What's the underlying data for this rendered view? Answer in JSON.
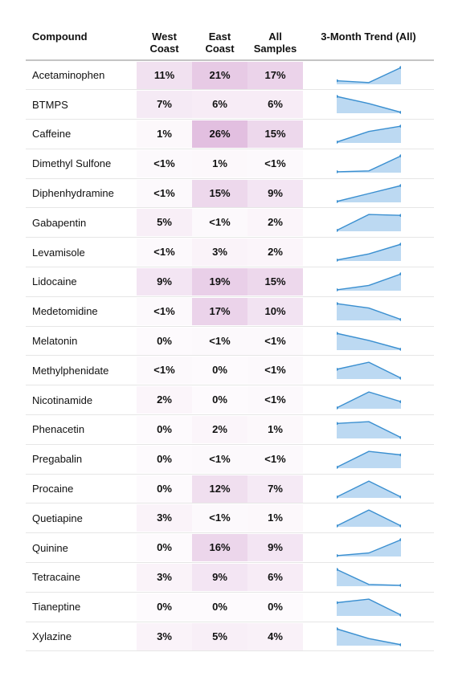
{
  "chart_data": {
    "type": "table",
    "columns": [
      "Compound",
      "West Coast",
      "East Coast",
      "All Samples",
      "3-Month Trend (All)"
    ],
    "rows": [
      {
        "compound": "Acetaminophen",
        "west": "11%",
        "east": "21%",
        "all": "17%",
        "west_v": 11,
        "east_v": 21,
        "all_v": 17,
        "trend": [
          0.2,
          0.1,
          0.95
        ]
      },
      {
        "compound": "BTMPS",
        "west": "7%",
        "east": "6%",
        "all": "6%",
        "west_v": 7,
        "east_v": 6,
        "all_v": 6,
        "trend": [
          0.95,
          0.55,
          0.05
        ]
      },
      {
        "compound": "Caffeine",
        "west": "1%",
        "east": "26%",
        "all": "15%",
        "west_v": 1,
        "east_v": 26,
        "all_v": 15,
        "trend": [
          0.05,
          0.65,
          0.95
        ]
      },
      {
        "compound": "Dimethyl Sulfone",
        "west": "<1%",
        "east": "1%",
        "all": "<1%",
        "west_v": 0.5,
        "east_v": 1,
        "all_v": 0.5,
        "trend": [
          0.05,
          0.1,
          0.95
        ]
      },
      {
        "compound": "Diphenhydramine",
        "west": "<1%",
        "east": "15%",
        "all": "9%",
        "west_v": 0.5,
        "east_v": 15,
        "all_v": 9,
        "trend": [
          0.05,
          0.5,
          0.95
        ]
      },
      {
        "compound": "Gabapentin",
        "west": "5%",
        "east": "<1%",
        "all": "2%",
        "west_v": 5,
        "east_v": 0.5,
        "all_v": 2,
        "trend": [
          0.05,
          0.95,
          0.9
        ]
      },
      {
        "compound": "Levamisole",
        "west": "<1%",
        "east": "3%",
        "all": "2%",
        "west_v": 0.5,
        "east_v": 3,
        "all_v": 2,
        "trend": [
          0.05,
          0.4,
          0.95
        ]
      },
      {
        "compound": "Lidocaine",
        "west": "9%",
        "east": "19%",
        "all": "15%",
        "west_v": 9,
        "east_v": 19,
        "all_v": 15,
        "trend": [
          0.05,
          0.3,
          0.95
        ]
      },
      {
        "compound": "Medetomidine",
        "west": "<1%",
        "east": "17%",
        "all": "10%",
        "west_v": 0.5,
        "east_v": 17,
        "all_v": 10,
        "trend": [
          0.95,
          0.7,
          0.05
        ]
      },
      {
        "compound": "Melatonin",
        "west": "0%",
        "east": "<1%",
        "all": "<1%",
        "west_v": 0,
        "east_v": 0.5,
        "all_v": 0.5,
        "trend": [
          0.95,
          0.55,
          0.05
        ]
      },
      {
        "compound": "Methylphenidate",
        "west": "<1%",
        "east": "0%",
        "all": "<1%",
        "west_v": 0.5,
        "east_v": 0,
        "all_v": 0.5,
        "trend": [
          0.55,
          0.95,
          0.05
        ]
      },
      {
        "compound": "Nicotinamide",
        "west": "2%",
        "east": "0%",
        "all": "<1%",
        "west_v": 2,
        "east_v": 0,
        "all_v": 0.5,
        "trend": [
          0.05,
          0.95,
          0.4
        ]
      },
      {
        "compound": "Phenacetin",
        "west": "0%",
        "east": "2%",
        "all": "1%",
        "west_v": 0,
        "east_v": 2,
        "all_v": 1,
        "trend": [
          0.85,
          0.95,
          0.05
        ]
      },
      {
        "compound": "Pregabalin",
        "west": "0%",
        "east": "<1%",
        "all": "<1%",
        "west_v": 0,
        "east_v": 0.5,
        "all_v": 0.5,
        "trend": [
          0.05,
          0.95,
          0.75
        ]
      },
      {
        "compound": "Procaine",
        "west": "0%",
        "east": "12%",
        "all": "7%",
        "west_v": 0,
        "east_v": 12,
        "all_v": 7,
        "trend": [
          0.05,
          0.95,
          0.05
        ]
      },
      {
        "compound": "Quetiapine",
        "west": "3%",
        "east": "<1%",
        "all": "1%",
        "west_v": 3,
        "east_v": 0.5,
        "all_v": 1,
        "trend": [
          0.05,
          0.95,
          0.05
        ]
      },
      {
        "compound": "Quinine",
        "west": "0%",
        "east": "16%",
        "all": "9%",
        "west_v": 0,
        "east_v": 16,
        "all_v": 9,
        "trend": [
          0.05,
          0.2,
          0.95
        ]
      },
      {
        "compound": "Tetracaine",
        "west": "3%",
        "east": "9%",
        "all": "6%",
        "west_v": 3,
        "east_v": 9,
        "all_v": 6,
        "trend": [
          0.95,
          0.1,
          0.05
        ]
      },
      {
        "compound": "Tianeptine",
        "west": "0%",
        "east": "0%",
        "all": "0%",
        "west_v": 0,
        "east_v": 0,
        "all_v": 0,
        "trend": [
          0.75,
          0.95,
          0.05
        ]
      },
      {
        "compound": "Xylazine",
        "west": "3%",
        "east": "5%",
        "all": "4%",
        "west_v": 3,
        "east_v": 5,
        "all_v": 4,
        "trend": [
          0.95,
          0.4,
          0.05
        ]
      }
    ],
    "heat_color_max": "#e2bfe0",
    "heat_color_min": "#ffffff",
    "heat_max_value": 26,
    "trend_line_color": "#3a8fd0",
    "trend_fill_color": "#bcd9f2"
  },
  "header": {
    "compound": "Compound",
    "west_line1": "West",
    "west_line2": "Coast",
    "east_line1": "East",
    "east_line2": "Coast",
    "all_line1": "All",
    "all_line2": "Samples",
    "trend": "3-Month Trend (All)"
  }
}
